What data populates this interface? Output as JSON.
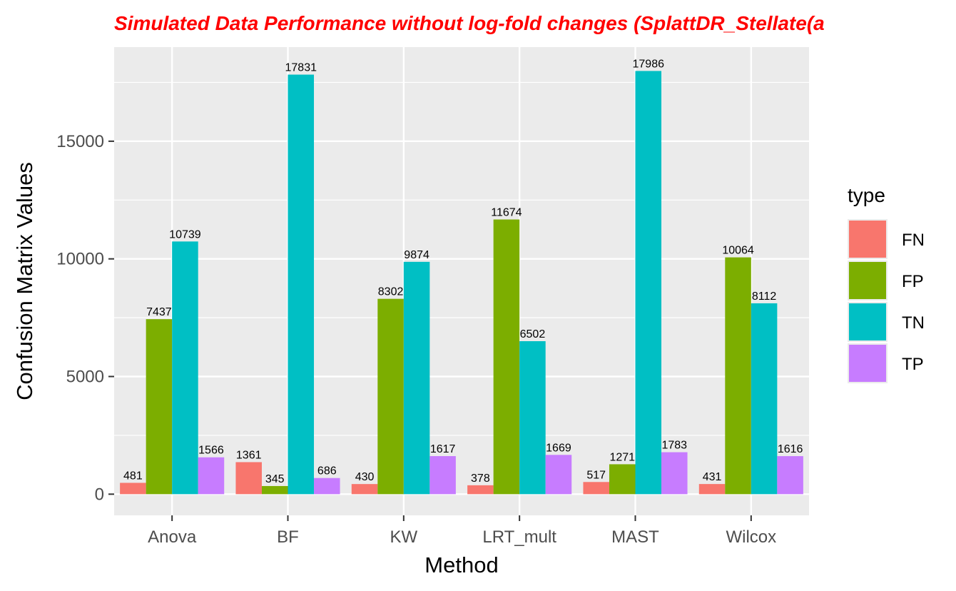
{
  "chart_data": {
    "type": "bar",
    "title": "Simulated Data Performance without log-fold changes (SplattDR_Stellate(a",
    "xlabel": "Method",
    "ylabel": "Confusion Matrix Values",
    "categories": [
      "Anova",
      "BF",
      "KW",
      "LRT_mult",
      "MAST",
      "Wilcox"
    ],
    "series": [
      {
        "name": "FN",
        "color": "#F8766D",
        "values": [
          481,
          1361,
          430,
          378,
          517,
          431
        ]
      },
      {
        "name": "FP",
        "color": "#7CAE00",
        "values": [
          7437,
          345,
          8302,
          11674,
          1271,
          10064
        ]
      },
      {
        "name": "TN",
        "color": "#00BFC4",
        "values": [
          10739,
          17831,
          9874,
          6502,
          17986,
          8112
        ]
      },
      {
        "name": "TP",
        "color": "#C77CFF",
        "values": [
          1566,
          686,
          1617,
          1669,
          1783,
          1616
        ]
      }
    ],
    "ylim": [
      -900,
      19000
    ],
    "yticks": [
      0,
      5000,
      10000,
      15000
    ],
    "grid": true,
    "panel_background": "#EBEBEB",
    "legend": {
      "title": "type",
      "placement": "right"
    },
    "title_color": "#FF0000"
  }
}
